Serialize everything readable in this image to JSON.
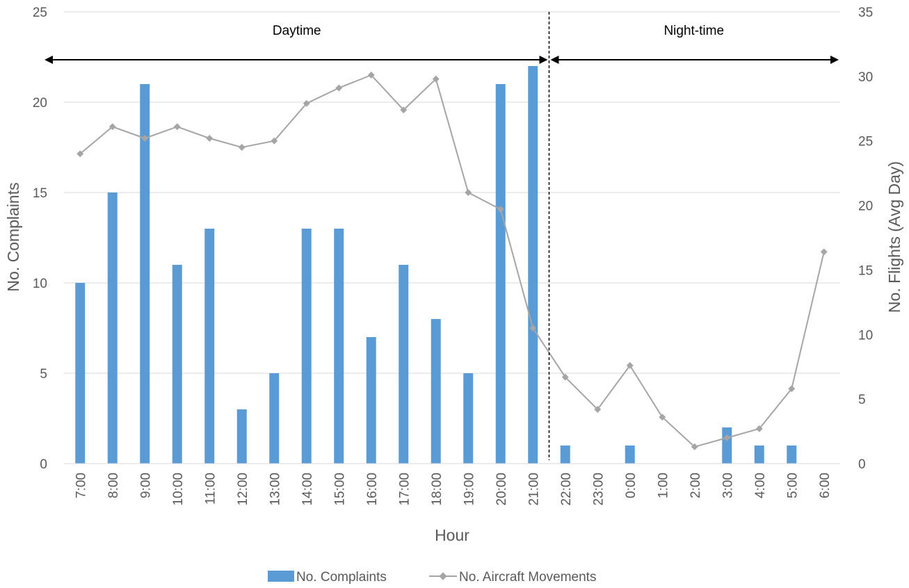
{
  "chart_data": {
    "type": "bar",
    "categories": [
      "7:00",
      "8:00",
      "9:00",
      "10:00",
      "11:00",
      "12:00",
      "13:00",
      "14:00",
      "15:00",
      "16:00",
      "17:00",
      "18:00",
      "19:00",
      "20:00",
      "21:00",
      "22:00",
      "23:00",
      "0:00",
      "1:00",
      "2:00",
      "3:00",
      "4:00",
      "5:00",
      "6:00"
    ],
    "series": [
      {
        "name": "No. Complaints",
        "type": "bar",
        "axis": "left",
        "color": "#5B9BD5",
        "values": [
          10,
          15,
          21,
          11,
          13,
          3,
          5,
          13,
          13,
          7,
          11,
          8,
          5,
          21,
          22,
          1,
          0,
          1,
          0,
          0,
          2,
          1,
          1,
          0
        ]
      },
      {
        "name": "No. Aircraft Movements",
        "type": "line",
        "axis": "right",
        "color": "#A5A5A5",
        "values": [
          24,
          26.1,
          25.2,
          26.1,
          25.2,
          24.5,
          25,
          27.9,
          29.1,
          30.1,
          27.4,
          29.8,
          21,
          19.7,
          10.5,
          6.7,
          4.2,
          7.6,
          3.6,
          1.3,
          2,
          2.7,
          5.8,
          16.4
        ]
      }
    ],
    "xlabel": "Hour",
    "ylabel": "No. Complaints",
    "y2label": "No. Flights (Avg Day)",
    "ylim": [
      0,
      25
    ],
    "y2lim": [
      0,
      35
    ],
    "yticks": [
      "0",
      "5",
      "10",
      "15",
      "20",
      "25"
    ],
    "y2ticks": [
      "0",
      "5",
      "10",
      "15",
      "20",
      "25",
      "30",
      "35"
    ],
    "grid": true,
    "legend_position": "bottom",
    "annotations": [
      {
        "label": "Daytime",
        "from": "7:00",
        "to": "22:00"
      },
      {
        "label": "Night-time",
        "from": "22:00",
        "to": "6:00"
      }
    ],
    "divider_at": "22:00"
  }
}
